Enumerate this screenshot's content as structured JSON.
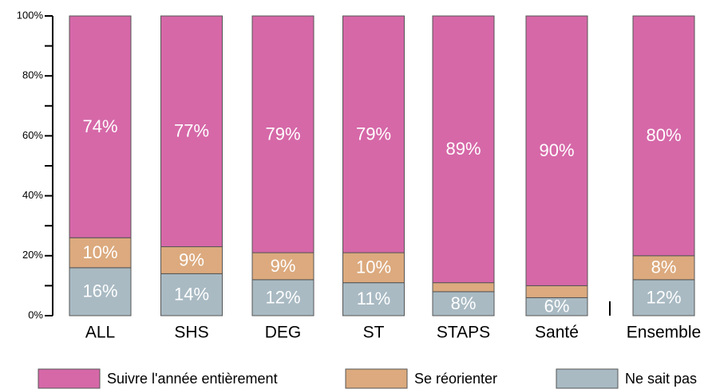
{
  "chart_data": {
    "type": "stacked_bar",
    "categories": [
      "ALL",
      "SHS",
      "DEG",
      "ST",
      "STAPS",
      "Santé",
      "Ensemble"
    ],
    "series": [
      {
        "name": "Suivre l'année entièrement",
        "color": "#d668a8",
        "values": [
          74,
          77,
          79,
          79,
          89,
          90,
          80
        ],
        "value_labels": [
          "74%",
          "77%",
          "79%",
          "79%",
          "89%",
          "90%",
          "80%"
        ]
      },
      {
        "name": "Se réorienter",
        "color": "#dcaa7e",
        "values": [
          10,
          9,
          9,
          10,
          3,
          4,
          8
        ],
        "value_labels": [
          "10%",
          "9%",
          "9%",
          "10%",
          null,
          null,
          "8%"
        ]
      },
      {
        "name": "Ne sait pas",
        "color": "#a9bac3",
        "values": [
          16,
          14,
          12,
          11,
          8,
          6,
          12
        ],
        "value_labels": [
          "16%",
          "14%",
          "12%",
          "11%",
          "8%",
          "6%",
          "12%"
        ]
      }
    ],
    "ylim": [
      0,
      100
    ],
    "yticks": [
      {
        "value": 0,
        "label": "0%"
      },
      {
        "value": 20,
        "label": "20%"
      },
      {
        "value": 40,
        "label": "40%"
      },
      {
        "value": 60,
        "label": "60%"
      },
      {
        "value": 80,
        "label": "80%"
      },
      {
        "value": 100,
        "label": "100%"
      }
    ],
    "yminorticks": [
      10,
      30,
      50,
      70,
      90
    ],
    "legend": "bottom"
  }
}
